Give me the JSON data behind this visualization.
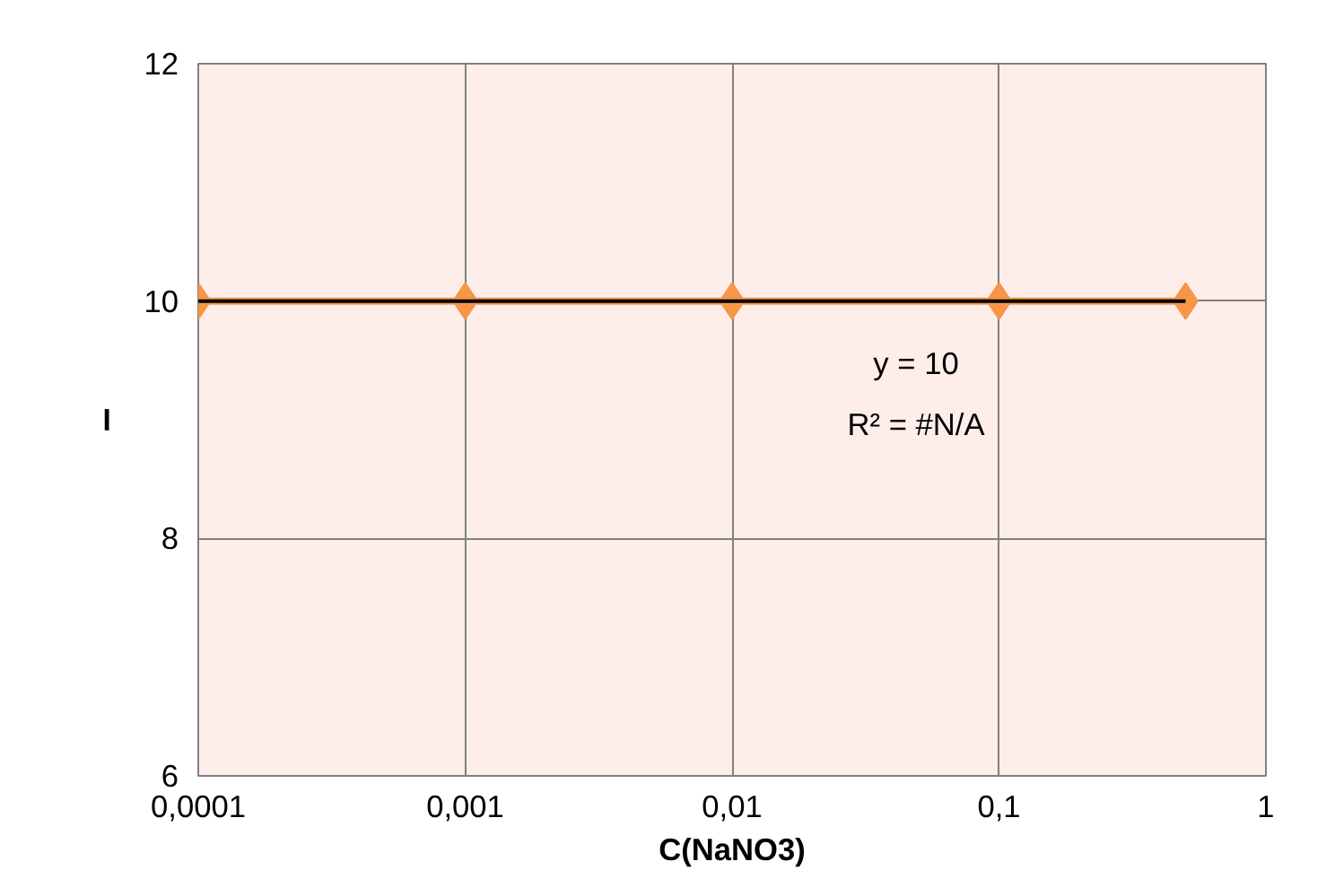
{
  "chart_data": {
    "type": "line",
    "xlabel": "C(NaNO3)",
    "ylabel": "–",
    "log": "x",
    "x": [
      0.0001,
      0.001,
      0.01,
      0.1,
      0.5
    ],
    "series": [
      {
        "color": "#f79646",
        "values": [
          10,
          10,
          10,
          10,
          10
        ],
        "marker": "diamond"
      },
      {
        "type": "line",
        "color": "#000000",
        "x": [
          0.0001,
          0.5
        ],
        "values": [
          10,
          10
        ],
        "marker": "none"
      }
    ],
    "xlim": [
      0.0001,
      1
    ],
    "xticks": [
      {
        "value": 0.0001,
        "label": "0,0001"
      },
      {
        "value": 0.001,
        "label": "0,001"
      },
      {
        "value": 0.01,
        "label": "0,01"
      },
      {
        "value": 0.1,
        "label": "0,1"
      },
      1
    ],
    "ylim": [
      6,
      12
    ],
    "yticks": [
      6,
      8,
      10,
      12
    ],
    "annotations": [
      "y = 10",
      "R² = #N/A"
    ],
    "grid": true
  }
}
